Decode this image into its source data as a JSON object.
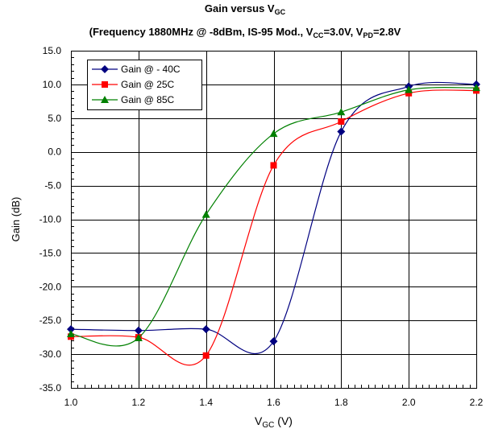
{
  "chart_data": {
    "type": "line",
    "title": {
      "line1": {
        "main": "Gain versus V",
        "sub": "GC"
      },
      "line2_parts": [
        {
          "t": "(Frequency 1880MHz @ -8dBm, IS-95 Mod., V"
        },
        {
          "t": "CC",
          "sub": true
        },
        {
          "t": "=3.0V, V"
        },
        {
          "t": "PD",
          "sub": true
        },
        {
          "t": "=2.8V"
        }
      ]
    },
    "xlabel": {
      "main": "V",
      "sub": "GC",
      "suffix": " (V)"
    },
    "ylabel": "Gain (dB)",
    "xlim": [
      1.0,
      2.2
    ],
    "ylim": [
      -35.0,
      15.0
    ],
    "x_ticks": [
      "1.0",
      "1.2",
      "1.4",
      "1.6",
      "1.8",
      "2.0",
      "2.2"
    ],
    "y_ticks": [
      "15.0",
      "10.0",
      "5.0",
      "0.0",
      "-5.0",
      "-10.0",
      "-15.0",
      "-20.0",
      "-25.0",
      "-30.0",
      "-35.0"
    ],
    "grid": true,
    "legend_position": "top-left",
    "series": [
      {
        "name": "Gain @ - 40C",
        "color": "#000080",
        "marker": "diamond",
        "x": [
          1.0,
          1.2,
          1.4,
          1.6,
          1.8,
          2.0,
          2.2
        ],
        "values": [
          -26.3,
          -26.5,
          -26.3,
          -28.1,
          3.0,
          9.7,
          10.0
        ]
      },
      {
        "name": "Gain @ 25C",
        "color": "#ff0000",
        "marker": "square",
        "x": [
          1.0,
          1.2,
          1.4,
          1.6,
          1.8,
          2.0,
          2.2
        ],
        "values": [
          -27.4,
          -27.5,
          -30.2,
          -2.0,
          4.5,
          8.7,
          9.1
        ]
      },
      {
        "name": "Gain @ 85C",
        "color": "#008000",
        "marker": "triangle",
        "x": [
          1.0,
          1.2,
          1.4,
          1.6,
          1.8,
          2.0,
          2.2
        ],
        "values": [
          -27.0,
          -27.6,
          -9.3,
          2.7,
          5.9,
          9.2,
          9.5
        ]
      }
    ]
  }
}
